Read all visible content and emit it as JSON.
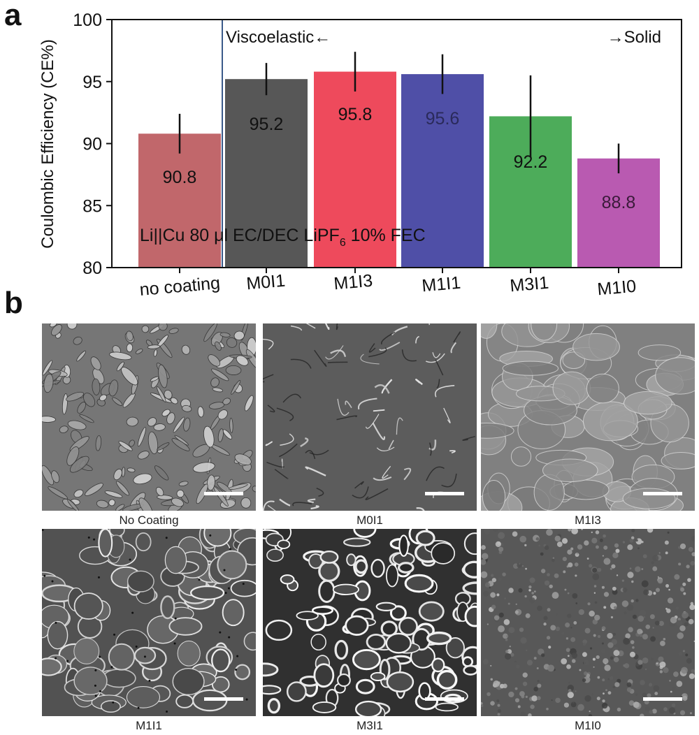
{
  "panels": {
    "a": "a",
    "b": "b"
  },
  "chart_data": {
    "type": "bar",
    "ylabel": "Coulombic Efficiency (CE%)",
    "xlabel": "",
    "ylim": [
      80,
      100
    ],
    "yticks": [
      80,
      85,
      90,
      95,
      100
    ],
    "grid": false,
    "categories": [
      "no coating",
      "M0I1",
      "M1I3",
      "M1I1",
      "M3I1",
      "M1I0"
    ],
    "values": [
      90.8,
      95.2,
      95.8,
      95.6,
      92.2,
      88.8
    ],
    "value_labels": [
      "90.8",
      "95.2",
      "95.8",
      "95.6",
      "92.2",
      "88.8"
    ],
    "errors": [
      1.6,
      1.3,
      1.6,
      1.6,
      3.3,
      1.2
    ],
    "colors": [
      "#c1676b",
      "#575757",
      "#ee4a5c",
      "#4f4fa7",
      "#4dac5a",
      "#b95ab1"
    ],
    "label_text_colors": [
      "#111111",
      "#111111",
      "#111111",
      "#2a2a5a",
      "#111111",
      "#3a1a3a"
    ],
    "annotations": {
      "left": "Viscoelastic←",
      "right": "→Solid",
      "condition_prefix": "Li||Cu 80 μl EC/DEC LiPF",
      "condition_subscript": "6",
      "condition_suffix": " 10% FEC"
    }
  },
  "sem_images": [
    {
      "caption": "No Coating",
      "texture": "flaky"
    },
    {
      "caption": "M0I1",
      "texture": "smooth"
    },
    {
      "caption": "M1I3",
      "texture": "plates"
    },
    {
      "caption": "M1I1",
      "texture": "nodular"
    },
    {
      "caption": "M3I1",
      "texture": "bright"
    },
    {
      "caption": "M1I0",
      "texture": "grainy"
    }
  ]
}
